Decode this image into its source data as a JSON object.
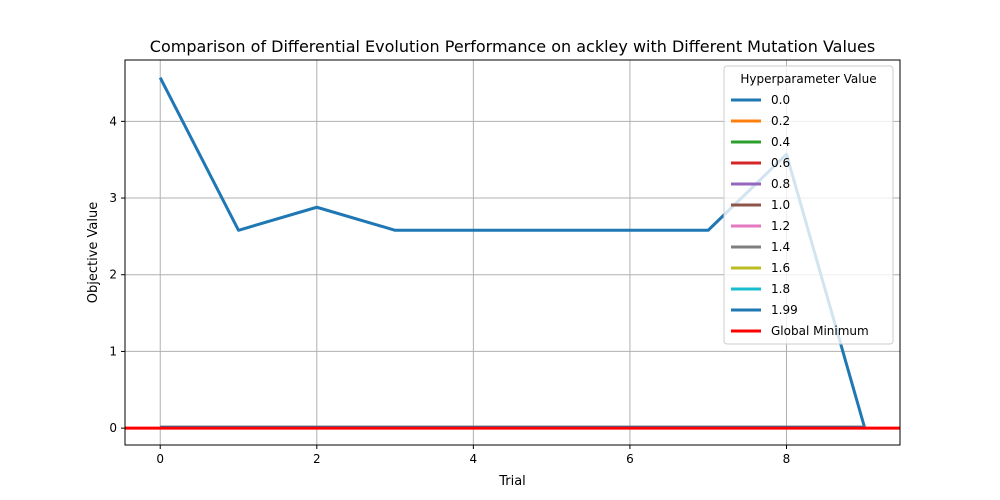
{
  "chart_data": {
    "type": "line",
    "title": "Comparison of Differential Evolution Performance on ackley with Different Mutation Values",
    "xlabel": "Trial",
    "ylabel": "Objective Value",
    "xlim": [
      -0.45,
      9.45
    ],
    "ylim": [
      -0.22,
      4.8
    ],
    "xticks": [
      0,
      2,
      4,
      6,
      8
    ],
    "yticks": [
      0,
      1,
      2,
      3,
      4
    ],
    "grid": true,
    "legend": {
      "title": "Hyperparameter Value",
      "placement": "top-right"
    },
    "x": [
      0,
      1,
      2,
      3,
      4,
      5,
      6,
      7,
      8,
      9
    ],
    "series": [
      {
        "name": "0.0",
        "color": "#1f77b4",
        "values": [
          4.57,
          2.58,
          2.88,
          2.58,
          2.58,
          2.58,
          2.58,
          2.58,
          3.57,
          0.0
        ]
      },
      {
        "name": "0.2",
        "color": "#ff7f0e",
        "values": [
          0.01,
          0.01,
          0.01,
          0.01,
          0.01,
          0.01,
          0.01,
          0.01,
          0.01,
          0.01
        ]
      },
      {
        "name": "0.4",
        "color": "#2ca02c",
        "values": [
          0.01,
          0.01,
          0.01,
          0.01,
          0.01,
          0.01,
          0.01,
          0.01,
          0.01,
          0.01
        ]
      },
      {
        "name": "0.6",
        "color": "#d62728",
        "values": [
          0.01,
          0.01,
          0.01,
          0.01,
          0.01,
          0.01,
          0.01,
          0.01,
          0.01,
          0.01
        ]
      },
      {
        "name": "0.8",
        "color": "#9467bd",
        "values": [
          0.01,
          0.01,
          0.01,
          0.01,
          0.01,
          0.01,
          0.01,
          0.01,
          0.01,
          0.01
        ]
      },
      {
        "name": "1.0",
        "color": "#8c564b",
        "values": [
          0.01,
          0.01,
          0.01,
          0.01,
          0.01,
          0.01,
          0.01,
          0.01,
          0.01,
          0.01
        ]
      },
      {
        "name": "1.2",
        "color": "#e377c2",
        "values": [
          0.01,
          0.01,
          0.01,
          0.01,
          0.01,
          0.01,
          0.01,
          0.01,
          0.01,
          0.01
        ]
      },
      {
        "name": "1.4",
        "color": "#7f7f7f",
        "values": [
          0.01,
          0.01,
          0.01,
          0.01,
          0.01,
          0.01,
          0.01,
          0.01,
          0.01,
          0.01
        ]
      },
      {
        "name": "1.6",
        "color": "#bcbd22",
        "values": [
          0.01,
          0.01,
          0.01,
          0.01,
          0.01,
          0.01,
          0.01,
          0.01,
          0.01,
          0.01
        ]
      },
      {
        "name": "1.8",
        "color": "#17becf",
        "values": [
          0.01,
          0.01,
          0.01,
          0.01,
          0.01,
          0.01,
          0.01,
          0.01,
          0.01,
          0.01
        ]
      },
      {
        "name": "1.99",
        "color": "#1f77b4",
        "values": [
          0.01,
          0.01,
          0.01,
          0.01,
          0.01,
          0.01,
          0.01,
          0.01,
          0.01,
          0.01
        ]
      }
    ],
    "reference_line": {
      "name": "Global Minimum",
      "value": 0,
      "color": "#ff0000"
    }
  }
}
